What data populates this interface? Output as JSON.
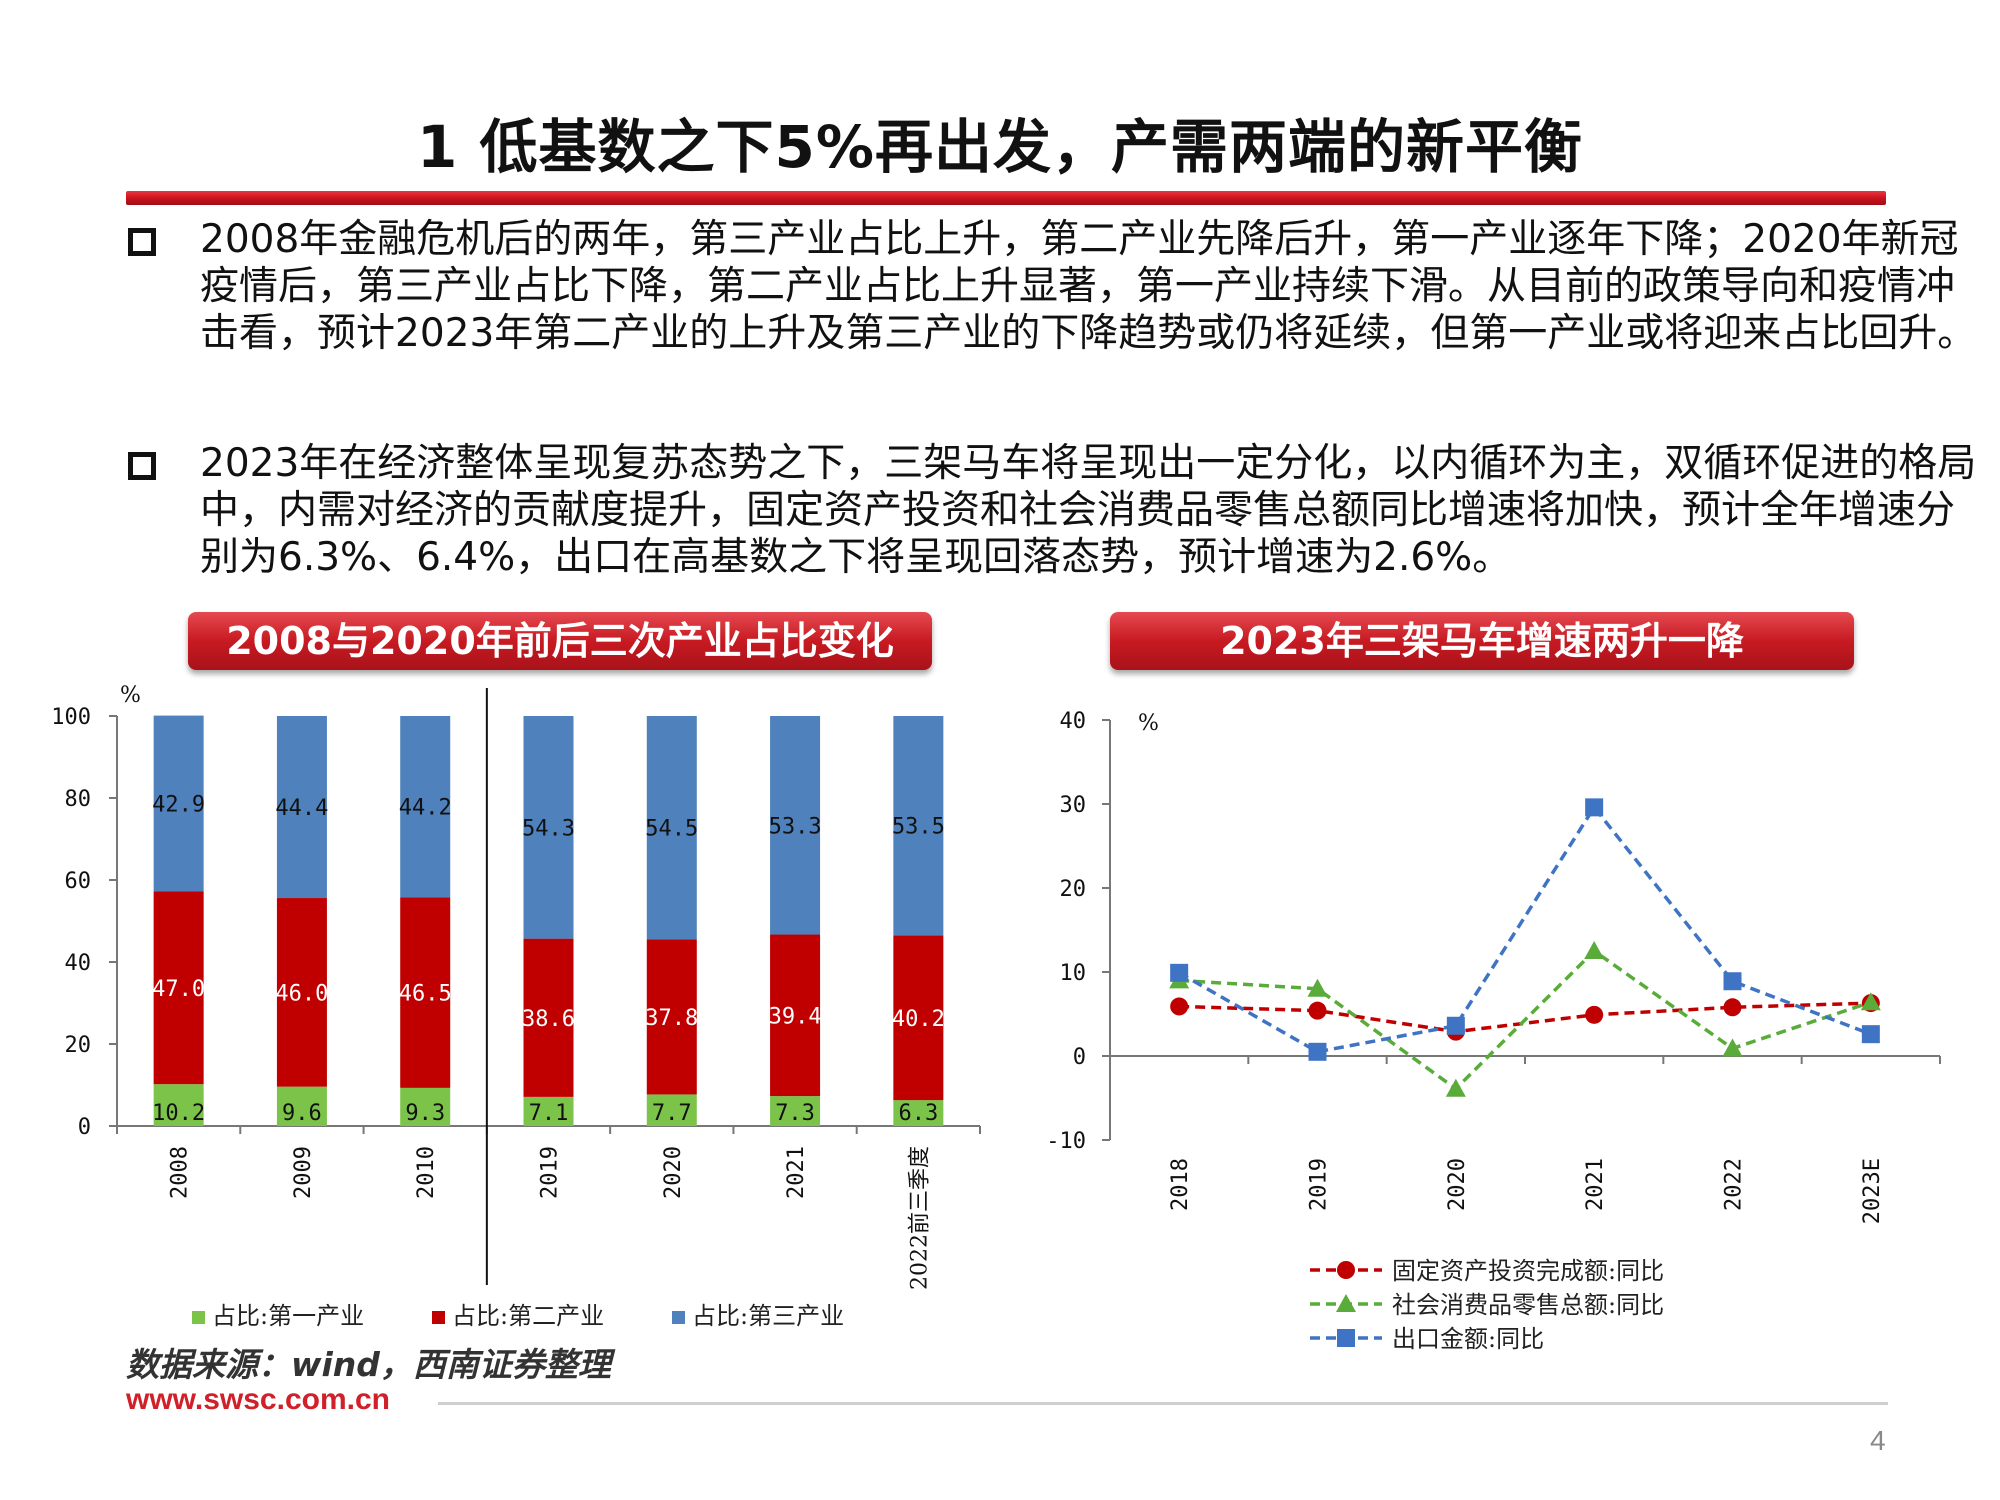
{
  "slide": {
    "title": "1 低基数之下5%再出发，产需两端的新平衡",
    "bullets": [
      "2008年金融危机后的两年，第三产业占比上升，第二产业先降后升，第一产业逐年下降；2020年新冠疫情后，第三产业占比下降，第二产业占比上升显著，第一产业持续下滑。从目前的政策导向和疫情冲击看，预计2023年第二产业的上升及第三产业的下降趋势或仍将延续，但第一产业或将迎来占比回升。",
      "2023年在经济整体呈现复苏态势之下，三架马车将呈现出一定分化，以内循环为主，双循环促进的格局中，内需对经济的贡献度提升，固定资产投资和社会消费品零售总额同比增速将加快，预计全年增速分别为6.3%、6.4%，出口在高基数之下将呈现回落态势，预计增速为2.6%。"
    ],
    "source": "数据来源：wind，西南证券整理",
    "website": "www.swsc.com.cn",
    "page_number": "4"
  },
  "colors": {
    "primary": "#7cc34a",
    "secondary": "#c00000",
    "tertiary": "#4f81bd",
    "investment": "#c00000",
    "consumption": "#5aac3a",
    "export": "#3f74c4",
    "header": "#c81a22"
  },
  "chart_data": [
    {
      "type": "bar",
      "stacked": true,
      "title": "2008与2020年前后三次产业占比变化",
      "ylabel": "%",
      "ylim": [
        0,
        100
      ],
      "yticks": [
        "0",
        "20",
        "40",
        "60",
        "80",
        "100"
      ],
      "categories": [
        "2008",
        "2009",
        "2010",
        "2019",
        "2020",
        "2021",
        "2022前三季度"
      ],
      "series": [
        {
          "name": "占比:第一产业",
          "values": [
            10.2,
            9.6,
            9.3,
            7.1,
            7.7,
            7.3,
            6.3
          ],
          "labels": [
            "10.2",
            "9.6",
            "9.3",
            "7.1",
            "7.7",
            "7.3",
            "6.3"
          ]
        },
        {
          "name": "占比:第二产业",
          "values": [
            47.0,
            46.0,
            46.5,
            38.6,
            37.8,
            39.4,
            40.2
          ],
          "labels": [
            "47.0",
            "46.0",
            "46.5",
            "38.6",
            "37.8",
            "39.4",
            "40.2"
          ]
        },
        {
          "name": "占比:第三产业",
          "values": [
            42.9,
            44.4,
            44.2,
            54.3,
            54.5,
            53.3,
            53.5
          ],
          "labels": [
            "42.9",
            "44.4",
            "44.2",
            "54.3",
            "54.5",
            "53.3",
            "53.5"
          ]
        }
      ],
      "legend": "bottom"
    },
    {
      "type": "line",
      "title": "2023年三架马车增速两升一降",
      "ylabel": "%",
      "ylim": [
        -10,
        40
      ],
      "yticks": [
        "-10",
        "0",
        "10",
        "20",
        "30",
        "40"
      ],
      "categories": [
        "2018",
        "2019",
        "2020",
        "2021",
        "2022",
        "2023E"
      ],
      "series": [
        {
          "name": "固定资产投资完成额:同比",
          "values": [
            5.9,
            5.4,
            2.9,
            4.9,
            5.8,
            6.3
          ]
        },
        {
          "name": "社会消费品零售总额:同比",
          "values": [
            9.0,
            8.0,
            -3.9,
            12.5,
            0.9,
            6.4
          ]
        },
        {
          "name": "出口金额:同比",
          "values": [
            9.9,
            0.5,
            3.6,
            29.6,
            8.9,
            2.6
          ]
        }
      ],
      "legend": "bottom"
    }
  ]
}
